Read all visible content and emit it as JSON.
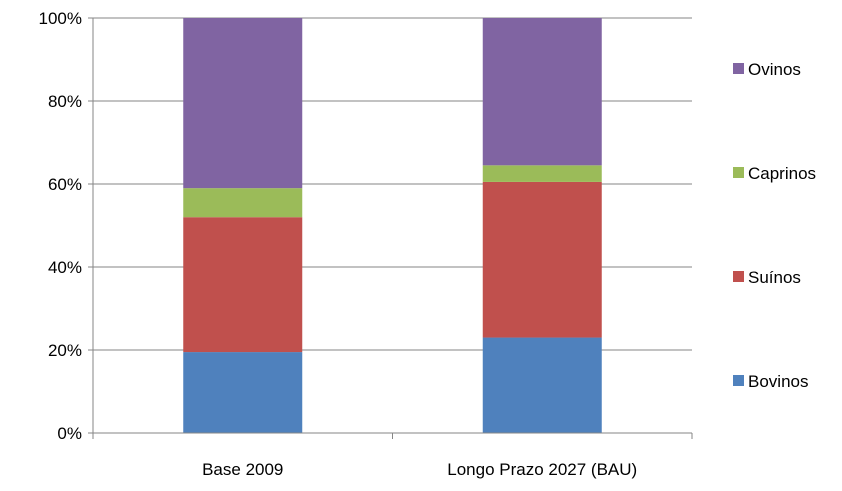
{
  "chart_data": {
    "type": "bar",
    "stacked": true,
    "normalized": true,
    "title": "",
    "xlabel": "",
    "ylabel": "",
    "ylim": [
      0,
      100
    ],
    "yticks": [
      "0%",
      "20%",
      "40%",
      "60%",
      "80%",
      "100%"
    ],
    "grid": true,
    "legend_position": "right",
    "categories": [
      "Base 2009",
      "Longo Prazo 2027 (BAU)"
    ],
    "series": [
      {
        "name": "Bovinos",
        "color": "#4F81BD",
        "values": [
          19.5,
          23
        ]
      },
      {
        "name": "Suínos",
        "color": "#C0504D",
        "values": [
          32.5,
          37.5
        ]
      },
      {
        "name": "Caprinos",
        "color": "#9BBB59",
        "values": [
          7,
          4
        ]
      },
      {
        "name": "Ovinos",
        "color": "#8064A2",
        "values": [
          41,
          35.5
        ]
      }
    ],
    "legend_order": [
      "Ovinos",
      "Caprinos",
      "Suínos",
      "Bovinos"
    ]
  }
}
